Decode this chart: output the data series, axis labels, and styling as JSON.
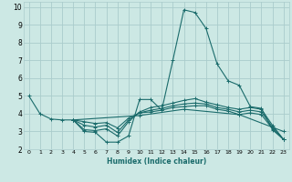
{
  "xlabel": "Humidex (Indice chaleur)",
  "background_color": "#cce8e4",
  "grid_color": "#aacccc",
  "line_color": "#1a6b6b",
  "xlim": [
    -0.5,
    23.5
  ],
  "ylim": [
    2,
    10.3
  ],
  "xticks": [
    0,
    1,
    2,
    3,
    4,
    5,
    6,
    7,
    8,
    9,
    10,
    11,
    12,
    13,
    14,
    15,
    16,
    17,
    18,
    19,
    20,
    21,
    22,
    23
  ],
  "yticks": [
    2,
    3,
    4,
    5,
    6,
    7,
    8,
    9,
    10
  ],
  "lines": [
    [
      [
        0,
        5.0
      ],
      [
        1,
        4.0
      ],
      [
        2,
        3.7
      ],
      [
        3,
        3.65
      ],
      [
        4,
        3.65
      ],
      [
        5,
        3.0
      ],
      [
        6,
        2.95
      ],
      [
        7,
        2.4
      ],
      [
        8,
        2.4
      ],
      [
        9,
        2.75
      ],
      [
        10,
        4.8
      ],
      [
        11,
        4.8
      ],
      [
        12,
        4.2
      ],
      [
        13,
        7.0
      ],
      [
        14,
        9.85
      ],
      [
        15,
        9.7
      ],
      [
        16,
        8.8
      ],
      [
        17,
        6.8
      ],
      [
        18,
        5.85
      ],
      [
        19,
        5.6
      ],
      [
        20,
        4.4
      ],
      [
        21,
        4.3
      ],
      [
        22,
        3.1
      ],
      [
        23,
        2.55
      ]
    ],
    [
      [
        4,
        3.65
      ],
      [
        5,
        3.1
      ],
      [
        6,
        3.05
      ],
      [
        7,
        3.15
      ],
      [
        8,
        2.75
      ],
      [
        9,
        3.55
      ],
      [
        10,
        4.1
      ],
      [
        11,
        4.35
      ],
      [
        12,
        4.45
      ],
      [
        13,
        4.6
      ],
      [
        14,
        4.75
      ],
      [
        15,
        4.85
      ],
      [
        16,
        4.65
      ],
      [
        17,
        4.5
      ],
      [
        18,
        4.35
      ],
      [
        19,
        4.25
      ],
      [
        20,
        4.35
      ],
      [
        21,
        4.25
      ],
      [
        22,
        3.35
      ],
      [
        23,
        2.55
      ]
    ],
    [
      [
        4,
        3.65
      ],
      [
        5,
        3.35
      ],
      [
        6,
        3.25
      ],
      [
        7,
        3.35
      ],
      [
        8,
        2.95
      ],
      [
        9,
        3.65
      ],
      [
        10,
        4.05
      ],
      [
        11,
        4.2
      ],
      [
        12,
        4.3
      ],
      [
        13,
        4.45
      ],
      [
        14,
        4.55
      ],
      [
        15,
        4.6
      ],
      [
        16,
        4.55
      ],
      [
        17,
        4.35
      ],
      [
        18,
        4.25
      ],
      [
        19,
        4.1
      ],
      [
        20,
        4.2
      ],
      [
        21,
        4.1
      ],
      [
        22,
        3.25
      ],
      [
        23,
        2.55
      ]
    ],
    [
      [
        4,
        3.65
      ],
      [
        10,
        3.9
      ],
      [
        14,
        4.25
      ],
      [
        19,
        3.95
      ],
      [
        23,
        3.0
      ]
    ],
    [
      [
        4,
        3.65
      ],
      [
        5,
        3.55
      ],
      [
        6,
        3.45
      ],
      [
        7,
        3.5
      ],
      [
        8,
        3.2
      ],
      [
        9,
        3.75
      ],
      [
        10,
        4.05
      ],
      [
        11,
        4.1
      ],
      [
        12,
        4.2
      ],
      [
        13,
        4.35
      ],
      [
        14,
        4.4
      ],
      [
        15,
        4.45
      ],
      [
        16,
        4.45
      ],
      [
        17,
        4.25
      ],
      [
        18,
        4.15
      ],
      [
        19,
        3.95
      ],
      [
        20,
        4.05
      ],
      [
        21,
        3.95
      ],
      [
        22,
        3.15
      ],
      [
        23,
        2.55
      ]
    ]
  ]
}
